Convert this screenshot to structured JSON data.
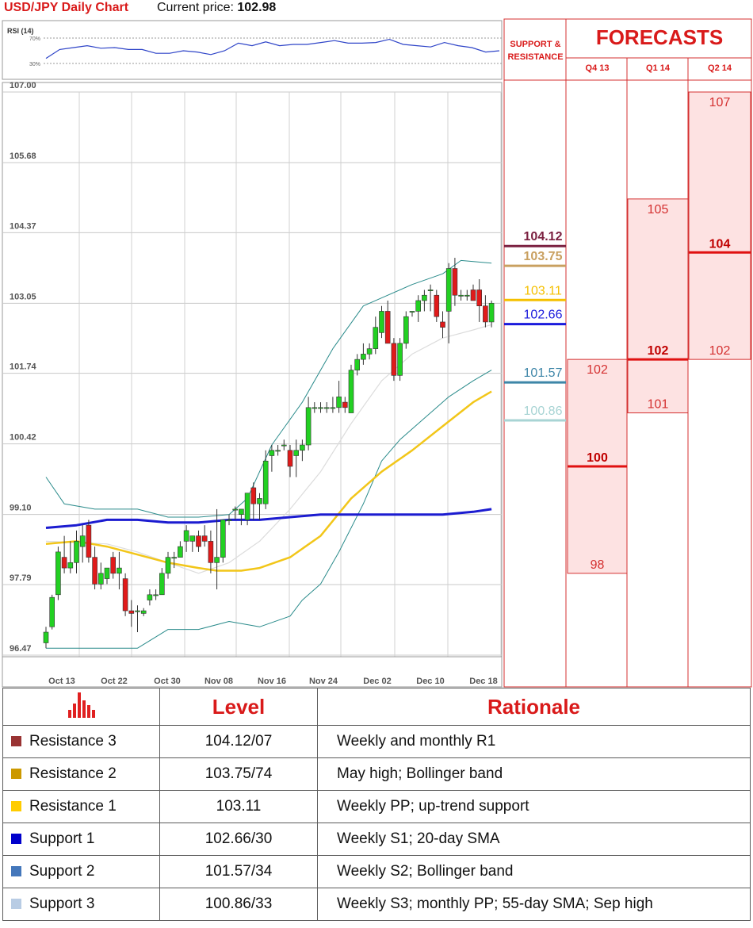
{
  "header": {
    "chart_title": "USD/JPY Daily Chart",
    "price_label": "Current price:",
    "price_value": "102.98",
    "sr_title_1": "SUPPORT &",
    "sr_title_2": "RESISTANCE",
    "forecasts_title": "FORECASTS",
    "quarters": [
      "Q4 13",
      "Q1 14",
      "Q2 14"
    ]
  },
  "levels": [
    {
      "value": 104.12,
      "label": "104.12",
      "color": "#7b2040",
      "bold": true
    },
    {
      "value": 103.75,
      "label": "103.75",
      "color": "#c9a060",
      "bold": true
    },
    {
      "value": 103.11,
      "label": "103.11",
      "color": "#f5c000",
      "bold": false
    },
    {
      "value": 102.66,
      "label": "102.66",
      "color": "#1a1adc",
      "bold": false
    },
    {
      "value": 101.57,
      "label": "101.57",
      "color": "#3e86a8",
      "bold": false
    },
    {
      "value": 100.86,
      "label": "100.86",
      "color": "#a8d4d4",
      "bold": false
    }
  ],
  "forecasts": [
    {
      "quarter": "Q4 13",
      "low": 98,
      "mid": 100,
      "high": 102,
      "low_label": "98",
      "mid_label": "100",
      "high_label": "102"
    },
    {
      "quarter": "Q1 14",
      "low": 101,
      "mid": 102,
      "high": 105,
      "low_label": "101",
      "mid_label": "102",
      "high_label": "105"
    },
    {
      "quarter": "Q2 14",
      "low": 102,
      "mid": 104,
      "high": 107,
      "low_label": "102",
      "mid_label": "104",
      "high_label": "107"
    }
  ],
  "rsi": {
    "label": "RSI (14)",
    "levels": [
      "70%",
      "30%"
    ]
  },
  "chart_data": {
    "type": "candlestick",
    "title": "USD/JPY Daily Chart",
    "y_ticks": [
      "107.00",
      "105.68",
      "104.37",
      "103.05",
      "101.74",
      "100.42",
      "99.10",
      "97.79",
      "96.47"
    ],
    "x_ticks": [
      "Oct 13",
      "Oct 22",
      "Oct 30",
      "Nov 08",
      "Nov 16",
      "Nov 24",
      "Dec 02",
      "Dec 10",
      "Dec 18"
    ],
    "ylim": [
      96.47,
      107.0
    ],
    "candles": [
      [
        96.7,
        97.0,
        96.6,
        96.9
      ],
      [
        97.0,
        97.6,
        96.95,
        97.55
      ],
      [
        97.6,
        98.5,
        97.5,
        98.4
      ],
      [
        98.3,
        98.7,
        98.0,
        98.1
      ],
      [
        98.1,
        98.6,
        98.0,
        98.2
      ],
      [
        98.2,
        98.8,
        98.0,
        98.6
      ],
      [
        98.5,
        98.9,
        98.2,
        98.7
      ],
      [
        98.9,
        99.0,
        98.2,
        98.3
      ],
      [
        98.3,
        98.5,
        97.7,
        97.8
      ],
      [
        97.8,
        98.2,
        97.7,
        98.0
      ],
      [
        97.9,
        98.1,
        97.8,
        98.1
      ],
      [
        98.3,
        98.4,
        97.9,
        98.0
      ],
      [
        98.0,
        98.4,
        97.7,
        98.1
      ],
      [
        97.9,
        98.0,
        97.2,
        97.3
      ],
      [
        97.3,
        97.5,
        97.0,
        97.25
      ],
      [
        97.3,
        97.4,
        96.9,
        97.3
      ],
      [
        97.25,
        97.35,
        97.2,
        97.3
      ],
      [
        97.5,
        97.7,
        97.4,
        97.6
      ],
      [
        97.6,
        97.7,
        97.5,
        97.6
      ],
      [
        97.6,
        98.1,
        97.6,
        98.0
      ],
      [
        98.0,
        98.4,
        97.9,
        98.3
      ],
      [
        98.3,
        98.4,
        98.1,
        98.3
      ],
      [
        98.3,
        98.6,
        98.3,
        98.5
      ],
      [
        98.6,
        98.9,
        98.4,
        98.8
      ],
      [
        98.6,
        98.7,
        98.4,
        98.7
      ],
      [
        98.7,
        98.8,
        98.4,
        98.5
      ],
      [
        98.7,
        98.9,
        98.5,
        98.6
      ],
      [
        98.6,
        98.8,
        98.0,
        98.2
      ],
      [
        98.2,
        99.2,
        97.7,
        98.3
      ],
      [
        98.3,
        99.0,
        98.2,
        99.0
      ],
      [
        99.0,
        99.1,
        98.9,
        99.0
      ],
      [
        99.2,
        99.25,
        99.0,
        99.2
      ],
      [
        99.1,
        99.2,
        98.9,
        99.2
      ],
      [
        99.0,
        99.5,
        98.9,
        99.5
      ],
      [
        99.6,
        99.7,
        99.0,
        99.3
      ],
      [
        99.3,
        99.5,
        99.0,
        99.4
      ],
      [
        99.3,
        100.3,
        99.2,
        100.1
      ],
      [
        100.2,
        100.4,
        99.9,
        100.3
      ],
      [
        100.3,
        100.4,
        100.2,
        100.3
      ],
      [
        100.4,
        100.5,
        100.3,
        100.4
      ],
      [
        100.3,
        100.4,
        99.8,
        100.0
      ],
      [
        100.2,
        100.5,
        99.8,
        100.3
      ],
      [
        100.3,
        100.5,
        100.1,
        100.4
      ],
      [
        100.4,
        101.3,
        100.3,
        101.1
      ],
      [
        101.1,
        101.2,
        101.0,
        101.1
      ],
      [
        101.1,
        101.2,
        101.0,
        101.1
      ],
      [
        101.1,
        101.2,
        101.0,
        101.1
      ],
      [
        101.1,
        101.3,
        101.0,
        101.1
      ],
      [
        101.1,
        101.6,
        101.0,
        101.3
      ],
      [
        101.2,
        101.3,
        101.0,
        101.1
      ],
      [
        101.0,
        101.9,
        101.0,
        101.8
      ],
      [
        101.8,
        102.1,
        101.7,
        102.0
      ],
      [
        102.0,
        102.3,
        101.9,
        102.1
      ],
      [
        102.1,
        102.3,
        102.0,
        102.2
      ],
      [
        102.2,
        102.8,
        102.1,
        102.6
      ],
      [
        102.5,
        103.0,
        102.4,
        102.9
      ],
      [
        102.9,
        103.1,
        102.3,
        102.3
      ],
      [
        102.3,
        102.4,
        101.6,
        101.7
      ],
      [
        101.7,
        102.4,
        101.6,
        102.3
      ],
      [
        102.3,
        102.9,
        102.2,
        102.8
      ],
      [
        102.9,
        102.9,
        102.8,
        102.9
      ],
      [
        102.9,
        103.2,
        102.7,
        103.1
      ],
      [
        103.1,
        103.3,
        102.9,
        103.2
      ],
      [
        103.3,
        103.4,
        102.9,
        103.3
      ],
      [
        103.2,
        103.3,
        102.7,
        102.8
      ],
      [
        102.7,
        102.9,
        102.4,
        102.6
      ],
      [
        102.9,
        103.8,
        102.3,
        103.7
      ],
      [
        103.7,
        103.9,
        103.0,
        103.2
      ],
      [
        103.2,
        103.3,
        103.1,
        103.2
      ],
      [
        103.2,
        103.3,
        103.1,
        103.2
      ],
      [
        103.3,
        103.4,
        103.1,
        103.1
      ],
      [
        103.3,
        103.5,
        102.7,
        103.0
      ],
      [
        103.0,
        103.2,
        102.6,
        102.7
      ],
      [
        102.7,
        103.1,
        102.6,
        103.05
      ]
    ],
    "sma20": [
      [
        0,
        98.6
      ],
      [
        10,
        98.55
      ],
      [
        15,
        98.4
      ],
      [
        20,
        98.2
      ],
      [
        25,
        98.0
      ],
      [
        30,
        98.2
      ],
      [
        35,
        98.6
      ],
      [
        40,
        99.2
      ],
      [
        45,
        99.9
      ],
      [
        50,
        100.8
      ],
      [
        55,
        101.6
      ],
      [
        60,
        102.1
      ],
      [
        65,
        102.4
      ],
      [
        70,
        102.55
      ],
      [
        73,
        102.65
      ]
    ],
    "sma55": [
      [
        0,
        98.55
      ],
      [
        5,
        98.6
      ],
      [
        10,
        98.5
      ],
      [
        15,
        98.35
      ],
      [
        20,
        98.2
      ],
      [
        25,
        98.1
      ],
      [
        28,
        98.05
      ],
      [
        32,
        98.05
      ],
      [
        35,
        98.1
      ],
      [
        40,
        98.3
      ],
      [
        45,
        98.7
      ],
      [
        50,
        99.4
      ],
      [
        55,
        99.9
      ],
      [
        60,
        100.3
      ],
      [
        65,
        100.75
      ],
      [
        70,
        101.2
      ],
      [
        73,
        101.4
      ]
    ],
    "sma100": [
      [
        0,
        98.85
      ],
      [
        5,
        98.9
      ],
      [
        10,
        99.0
      ],
      [
        15,
        99.0
      ],
      [
        20,
        98.95
      ],
      [
        25,
        98.95
      ],
      [
        30,
        99.0
      ],
      [
        35,
        99.0
      ],
      [
        40,
        99.05
      ],
      [
        45,
        99.1
      ],
      [
        50,
        99.1
      ],
      [
        55,
        99.1
      ],
      [
        60,
        99.1
      ],
      [
        65,
        99.1
      ],
      [
        70,
        99.15
      ],
      [
        73,
        99.2
      ]
    ],
    "bb_upper": [
      [
        0,
        99.8
      ],
      [
        3,
        99.3
      ],
      [
        8,
        99.2
      ],
      [
        15,
        99.2
      ],
      [
        20,
        99.05
      ],
      [
        25,
        99.05
      ],
      [
        30,
        99.1
      ],
      [
        33,
        99.4
      ],
      [
        37,
        100.4
      ],
      [
        42,
        101.2
      ],
      [
        47,
        102.2
      ],
      [
        52,
        103.0
      ],
      [
        55,
        103.15
      ],
      [
        60,
        103.4
      ],
      [
        65,
        103.6
      ],
      [
        68,
        103.85
      ],
      [
        73,
        103.8
      ]
    ],
    "bb_lower": [
      [
        0,
        96.6
      ],
      [
        5,
        96.6
      ],
      [
        10,
        96.6
      ],
      [
        15,
        96.6
      ],
      [
        20,
        96.95
      ],
      [
        25,
        96.95
      ],
      [
        30,
        97.1
      ],
      [
        35,
        97.0
      ],
      [
        40,
        97.2
      ],
      [
        42,
        97.5
      ],
      [
        45,
        97.8
      ],
      [
        48,
        98.4
      ],
      [
        52,
        99.3
      ],
      [
        55,
        100.1
      ],
      [
        58,
        100.5
      ],
      [
        62,
        100.9
      ],
      [
        66,
        101.3
      ],
      [
        70,
        101.6
      ],
      [
        73,
        101.8
      ]
    ],
    "rsi_values": [
      38,
      52,
      55,
      58,
      54,
      55,
      52,
      52,
      46,
      46,
      50,
      48,
      44,
      50,
      62,
      58,
      64,
      58,
      60,
      60,
      63,
      66,
      62,
      62,
      63,
      68,
      60,
      58,
      56,
      63,
      58,
      55,
      48,
      50
    ]
  },
  "table": {
    "header_level": "Level",
    "header_rationale": "Rationale",
    "rows": [
      {
        "name": "Resistance 3",
        "level": "104.12/07",
        "rationale": "Weekly and monthly R1",
        "color": "#993333"
      },
      {
        "name": "Resistance 2",
        "level": "103.75/74",
        "rationale": "May high; Bollinger band",
        "color": "#cc9900"
      },
      {
        "name": "Resistance 1",
        "level": "103.11",
        "rationale": "Weekly PP; up-trend support",
        "color": "#ffcc00"
      },
      {
        "name": "Support 1",
        "level": "102.66/30",
        "rationale": "Weekly S1; 20-day SMA",
        "color": "#0000cc"
      },
      {
        "name": "Support 2",
        "level": "101.57/34",
        "rationale": "Weekly S2; Bollinger band",
        "color": "#4477bb"
      },
      {
        "name": "Support 3",
        "level": "100.86/33",
        "rationale": "Weekly S3; monthly PP; 55-day SMA; Sep high",
        "color": "#b8cce4"
      }
    ]
  }
}
